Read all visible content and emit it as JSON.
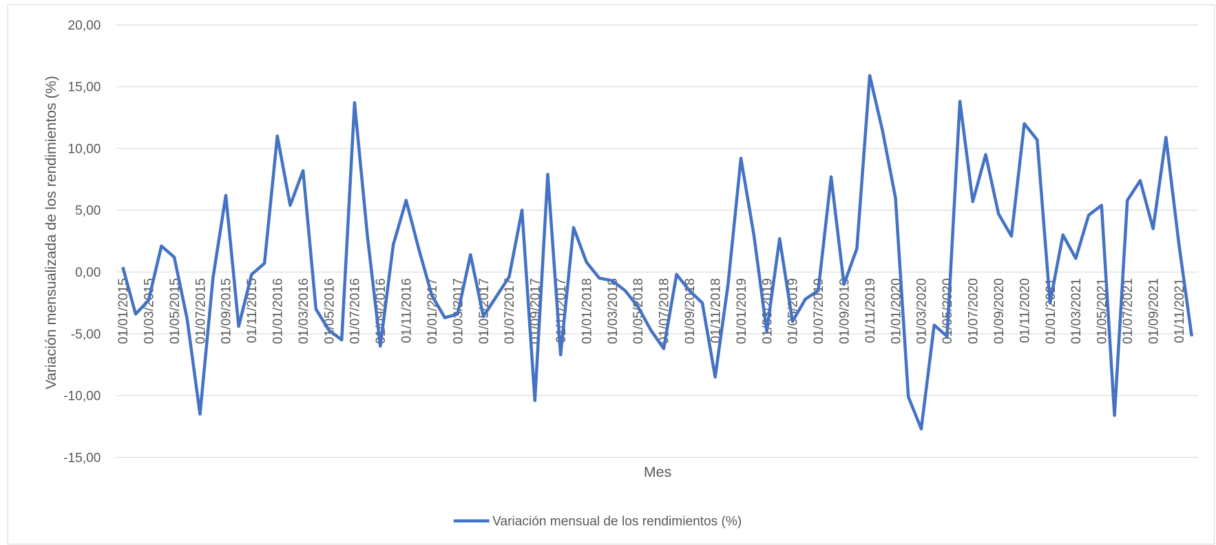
{
  "chart_data": {
    "type": "line",
    "x_label": "Mes",
    "y_label": "Variación mensualizada de los rendimientos (%)",
    "categories": [
      "01/01/2015",
      null,
      "01/03/2015",
      null,
      "01/05/2015",
      null,
      "01/07/2015",
      null,
      "01/09/2015",
      null,
      "01/11/2015",
      null,
      "01/01/2016",
      null,
      "01/03/2016",
      null,
      "01/05/2016",
      null,
      "01/07/2016",
      null,
      "01/09/2016",
      null,
      "01/11/2016",
      null,
      "01/01/2017",
      null,
      "01/03/2017",
      null,
      "01/05/2017",
      null,
      "01/07/2017",
      null,
      "01/09/2017",
      null,
      "01/11/2017",
      null,
      "01/01/2018",
      null,
      "01/03/2018",
      null,
      "01/05/2018",
      null,
      "01/07/2018",
      null,
      "01/09/2018",
      null,
      "01/11/2018",
      null,
      "01/01/2019",
      null,
      "01/03/2019",
      null,
      "01/05/2019",
      null,
      "01/07/2019",
      null,
      "01/09/2019",
      null,
      "01/11/2019",
      null,
      "01/01/2020",
      null,
      "01/03/2020",
      null,
      "01/05/2020",
      null,
      "01/07/2020",
      null,
      "01/09/2020",
      null,
      "01/11/2020",
      null,
      "01/01/2021",
      null,
      "01/03/2021",
      null,
      "01/05/2021",
      null,
      "01/07/2021",
      null,
      "01/09/2021",
      null,
      "01/11/2021",
      null
    ],
    "series": [
      {
        "name": "Variación mensual de los rendimientos (%)",
        "color": "#4472c4",
        "values": [
          0.4,
          -3.4,
          -2.3,
          2.1,
          1.2,
          -3.8,
          -11.5,
          -0.5,
          6.2,
          -4.4,
          -0.2,
          0.7,
          11.0,
          5.4,
          8.2,
          -3.0,
          -4.7,
          -5.5,
          13.7,
          2.9,
          -6.0,
          2.2,
          5.8,
          1.8,
          -1.9,
          -3.7,
          -3.4,
          1.4,
          -3.6,
          -2.0,
          -0.4,
          5.0,
          -10.4,
          7.9,
          -6.7,
          3.6,
          0.8,
          -0.5,
          -0.7,
          -1.5,
          -2.8,
          -4.7,
          -6.2,
          -0.2,
          -1.5,
          -2.5,
          -8.5,
          -1.0,
          9.2,
          3.0,
          -4.8,
          2.7,
          -4.0,
          -2.2,
          -1.5,
          7.7,
          -1.0,
          1.9,
          15.9,
          11.4,
          6.0,
          -10.1,
          -12.7,
          -4.3,
          -5.2,
          13.8,
          5.7,
          9.5,
          4.7,
          2.9,
          12.0,
          10.7,
          -2.5,
          3.0,
          1.1,
          4.6,
          5.4,
          -11.6,
          5.8,
          7.4,
          3.5,
          10.9,
          2.3,
          -5.2
        ]
      }
    ],
    "ylim": [
      -15,
      20
    ],
    "yticks": [
      {
        "value": -15,
        "label": "-15,00"
      },
      {
        "value": -10,
        "label": "-10,00"
      },
      {
        "value": -5,
        "label": "-5,00"
      },
      {
        "value": 0,
        "label": "0,00"
      },
      {
        "value": 5,
        "label": "5,00"
      },
      {
        "value": 10,
        "label": "10,00"
      },
      {
        "value": 15,
        "label": "15,00"
      },
      {
        "value": 20,
        "label": "20,00"
      }
    ],
    "grid": true,
    "legend": "bottom"
  }
}
